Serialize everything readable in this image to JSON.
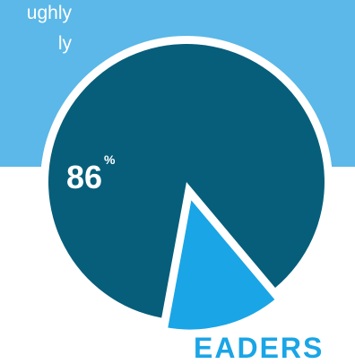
{
  "blurb": [
    "ughly",
    "ly"
  ],
  "footer_text": "EADERS",
  "colors": {
    "band": "#5bb8e8",
    "major": "#065e7a",
    "minor": "#1aa5e6",
    "outline": "#ffffff"
  },
  "chart_data": {
    "type": "pie",
    "title": "",
    "slices": [
      {
        "label": "",
        "value": 86,
        "color": "#065e7a"
      },
      {
        "label": "",
        "value": 14,
        "color": "#1aa5e6"
      }
    ],
    "data_labels": {
      "major": {
        "value": "86",
        "unit": "%"
      }
    }
  }
}
